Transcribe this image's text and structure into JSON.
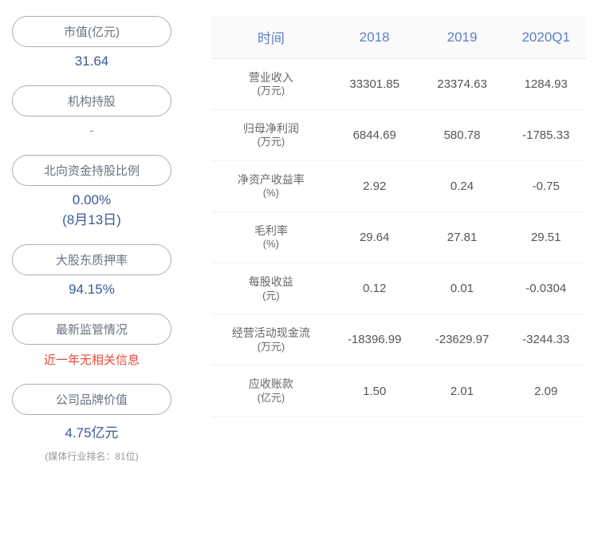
{
  "left_items": [
    {
      "label": "市值(亿元)",
      "value": "31.64",
      "value_class": ""
    },
    {
      "label": "机构持股",
      "value": "-",
      "value_class": "gray"
    },
    {
      "label": "北向资金持股比例",
      "value": "0.00%",
      "subtext": "(8月13日)",
      "value_class": ""
    },
    {
      "label": "大股东质押率",
      "value": "94.15%",
      "value_class": ""
    },
    {
      "label": "最新监管情况",
      "value": "近一年无相关信息",
      "value_class": "red"
    },
    {
      "label": "公司品牌价值",
      "value": "4.75亿元",
      "subtext": "(媒体行业排名：81位)",
      "value_class": ""
    }
  ],
  "table": {
    "headers": [
      "时间",
      "2018",
      "2019",
      "2020Q1"
    ],
    "rows": [
      {
        "name": "营业收入",
        "unit": "(万元)",
        "v1": "33301.85",
        "v2": "23374.63",
        "v3": "1284.93"
      },
      {
        "name": "归母净利润",
        "unit": "(万元)",
        "v1": "6844.69",
        "v2": "580.78",
        "v3": "-1785.33"
      },
      {
        "name": "净资产收益率",
        "unit": "(%)",
        "v1": "2.92",
        "v2": "0.24",
        "v3": "-0.75"
      },
      {
        "name": "毛利率",
        "unit": "(%)",
        "v1": "29.64",
        "v2": "27.81",
        "v3": "29.51"
      },
      {
        "name": "每股收益",
        "unit": "(元)",
        "v1": "0.12",
        "v2": "0.01",
        "v3": "-0.0304"
      },
      {
        "name": "经营活动现金流",
        "unit": "(万元)",
        "v1": "-18396.99",
        "v2": "-23629.97",
        "v3": "-3244.33"
      },
      {
        "name": "应收账款",
        "unit": "(亿元)",
        "v1": "1.50",
        "v2": "2.01",
        "v3": "2.09"
      }
    ]
  }
}
